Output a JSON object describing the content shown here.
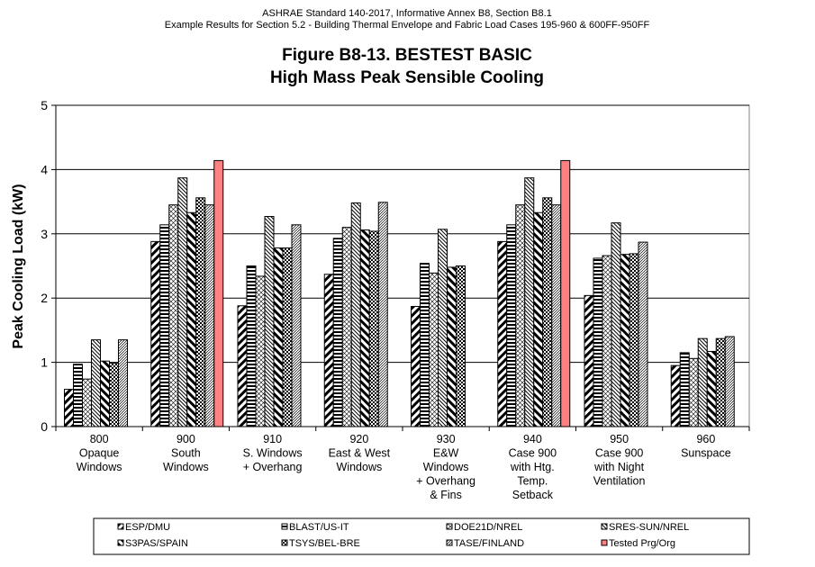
{
  "chart_data": {
    "type": "bar",
    "header_line1": "ASHRAE Standard 140-2017, Informative Annex B8, Section B8.1",
    "header_line2": "Example Results for Section 5.2 - Building Thermal Envelope and Fabric Load Cases 195-960 & 600FF-950FF",
    "title_line1": "Figure B8-13.  BESTEST BASIC",
    "title_line2": "High Mass Peak Sensible Cooling",
    "ylabel": "Peak Cooling Load (kW)",
    "xlabel": "",
    "ylim": [
      0,
      5
    ],
    "yticks": [
      "0",
      "1",
      "2",
      "3",
      "4",
      "5"
    ],
    "grid": true,
    "legend_placement": "bottom",
    "categories": [
      [
        "800",
        "Opaque",
        "Windows"
      ],
      [
        "900",
        "South",
        "Windows"
      ],
      [
        "910",
        "S. Windows",
        "+ Overhang"
      ],
      [
        "920",
        "East & West",
        "Windows"
      ],
      [
        "930",
        "E&W",
        "Windows",
        "+ Overhang",
        "& Fins"
      ],
      [
        "940",
        "Case 900",
        "with Htg.",
        "Temp.",
        "Setback"
      ],
      [
        "950",
        "Case 900",
        "with Night",
        "Ventilation"
      ],
      [
        "960",
        "Sunspace"
      ]
    ],
    "series": [
      {
        "name": "ESP/DMU",
        "pattern": "diag-fwd",
        "values": [
          0.58,
          2.88,
          1.88,
          2.37,
          1.87,
          2.88,
          2.04,
          0.95
        ]
      },
      {
        "name": "BLAST/US-IT",
        "pattern": "horiz",
        "values": [
          0.97,
          3.14,
          2.5,
          2.93,
          2.54,
          3.14,
          2.62,
          1.15
        ]
      },
      {
        "name": "DOE21D/NREL",
        "pattern": "cross",
        "values": [
          0.74,
          3.45,
          2.34,
          3.1,
          2.39,
          3.45,
          2.66,
          1.06
        ]
      },
      {
        "name": "SRES-SUN/NREL",
        "pattern": "diag-back-fine",
        "values": [
          1.35,
          3.87,
          3.27,
          3.48,
          3.07,
          3.87,
          3.17,
          1.37
        ]
      },
      {
        "name": "S3PAS/SPAIN",
        "pattern": "diag-back",
        "values": [
          1.02,
          3.33,
          2.78,
          3.06,
          2.48,
          3.33,
          2.68,
          1.17
        ]
      },
      {
        "name": "TSYS/BEL-BRE",
        "pattern": "checker",
        "values": [
          0.99,
          3.56,
          2.78,
          3.04,
          2.5,
          3.56,
          2.69,
          1.37
        ]
      },
      {
        "name": "TASE/FINLAND",
        "pattern": "dash-fwd",
        "values": [
          1.35,
          3.45,
          3.14,
          3.49,
          null,
          3.45,
          2.87,
          1.4
        ]
      },
      {
        "name": "Tested Prg/Org",
        "pattern": "solid",
        "color": "#FF8080",
        "values": [
          null,
          4.14,
          null,
          null,
          null,
          4.14,
          null,
          null
        ]
      }
    ]
  }
}
